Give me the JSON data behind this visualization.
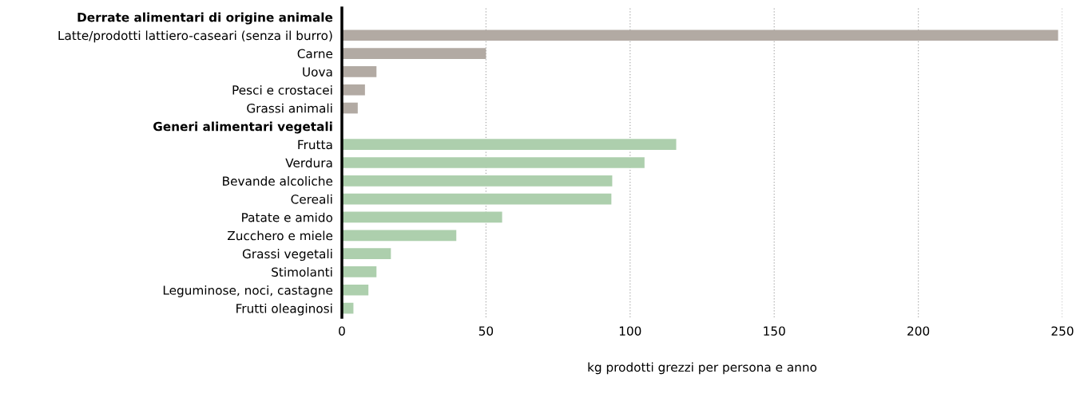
{
  "chart_data": {
    "type": "bar",
    "orientation": "horizontal",
    "xlabel": "kg prodotti grezzi per persona e anno",
    "categories": [
      "Derrate alimentari di origine animale",
      "Latte/prodotti lattiero-caseari (senza il burro)",
      "Carne",
      "Uova",
      "Pesci e crostacei",
      "Grassi animali",
      "Generi alimentari vegetali",
      "Frutta",
      "Verdura",
      "Bevande alcoliche",
      "Cereali",
      "Patate e amido",
      "Zucchero e miele",
      "Grassi vegetali",
      "Stimolanti",
      "Leguminose, noci, castagne",
      "Frutti oleaginosi"
    ],
    "values": [
      null,
      248.5,
      50,
      12,
      8,
      5.5,
      null,
      116,
      105,
      93.8,
      93.5,
      55.6,
      39.7,
      17,
      12,
      9.2,
      4
    ],
    "colors": [
      "#b2aaa3",
      "#b2aaa3",
      "#b2aaa3",
      "#b2aaa3",
      "#b2aaa3",
      "#b2aaa3",
      "#adcfad",
      "#adcfad",
      "#adcfad",
      "#adcfad",
      "#adcfad",
      "#adcfad",
      "#adcfad",
      "#adcfad",
      "#adcfad",
      "#adcfad",
      "#adcfad"
    ],
    "xlim": [
      0,
      250
    ],
    "xticks": [
      0,
      50,
      100,
      150,
      200,
      250
    ],
    "grid": "x"
  }
}
